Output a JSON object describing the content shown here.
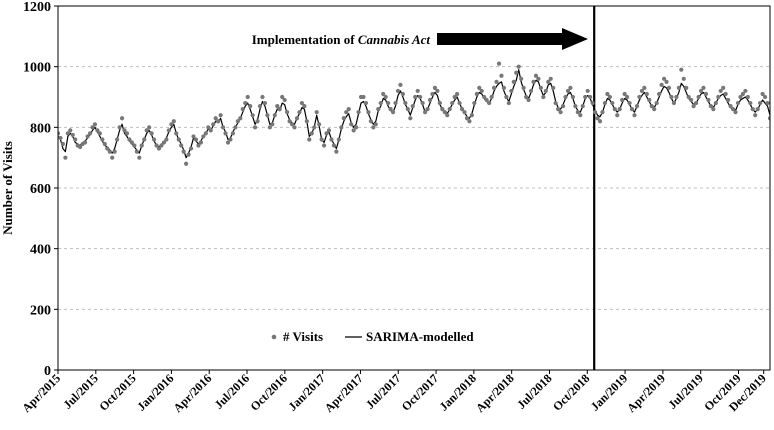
{
  "chart_data": {
    "type": "line",
    "title": "",
    "xlabel": "",
    "ylabel": "Number of Visits",
    "ylim": [
      0,
      1200
    ],
    "yticks": [
      0,
      200,
      400,
      600,
      800,
      1000,
      1200
    ],
    "grid": "horizontal-dashed",
    "x_range_months": [
      0,
      56.5
    ],
    "x_tick_labels": [
      "Apr/2015",
      "Jul/2015",
      "Oct/2015",
      "Jan/2016",
      "Apr/2016",
      "Jul/2016",
      "Oct/2016",
      "Jan/2017",
      "Apr/2017",
      "Jul/2017",
      "Oct/2017",
      "Jan/2018",
      "Apr/2018",
      "Jul/2018",
      "Oct/2018",
      "Jan/2019",
      "Apr/2019",
      "Jul/2019",
      "Oct/2019",
      "Dec/2019"
    ],
    "x_tick_positions_months": [
      0,
      3,
      6,
      9,
      12,
      15,
      18,
      21,
      24,
      27,
      30,
      33,
      36,
      39,
      42,
      45,
      48,
      51,
      54,
      56
    ],
    "intervention": {
      "label_prefix": "Implementation of ",
      "label_emph": "Cannabis Act",
      "x_month": 42.55
    },
    "legend": {
      "placement": "bottom-center",
      "visits_label": "# Visits",
      "model_label": "SARIMA-modelled"
    },
    "colors": {
      "visits": "#777777",
      "model": "#000000",
      "grid": "#bfbfbf"
    },
    "series": [
      {
        "name": "# Visits",
        "style": "points",
        "values": [
          780,
          765,
          745,
          700,
          780,
          790,
          775,
          760,
          740,
          735,
          745,
          750,
          770,
          780,
          800,
          810,
          790,
          780,
          760,
          745,
          730,
          720,
          700,
          720,
          760,
          800,
          830,
          790,
          780,
          760,
          750,
          740,
          720,
          700,
          740,
          760,
          790,
          800,
          780,
          760,
          740,
          730,
          740,
          750,
          760,
          790,
          810,
          820,
          780,
          760,
          740,
          720,
          680,
          710,
          730,
          770,
          760,
          740,
          750,
          770,
          780,
          800,
          790,
          810,
          830,
          820,
          840,
          800,
          780,
          750,
          760,
          780,
          800,
          820,
          830,
          860,
          880,
          900,
          870,
          840,
          800,
          820,
          870,
          900,
          880,
          840,
          800,
          810,
          840,
          870,
          860,
          900,
          890,
          850,
          820,
          810,
          800,
          830,
          850,
          880,
          870,
          820,
          760,
          780,
          800,
          850,
          810,
          760,
          740,
          780,
          790,
          760,
          740,
          720,
          760,
          800,
          830,
          850,
          860,
          810,
          790,
          800,
          850,
          900,
          900,
          880,
          850,
          820,
          800,
          810,
          860,
          880,
          910,
          900,
          880,
          860,
          850,
          880,
          920,
          940,
          910,
          880,
          860,
          830,
          870,
          900,
          920,
          900,
          880,
          850,
          860,
          890,
          910,
          930,
          920,
          880,
          860,
          850,
          840,
          860,
          880,
          900,
          910,
          880,
          860,
          850,
          830,
          820,
          840,
          880,
          910,
          930,
          920,
          900,
          890,
          880,
          900,
          930,
          950,
          1010,
          970,
          930,
          900,
          880,
          920,
          950,
          980,
          1000,
          960,
          930,
          900,
          890,
          920,
          950,
          970,
          960,
          930,
          900,
          920,
          950,
          960,
          930,
          880,
          860,
          850,
          870,
          900,
          920,
          930,
          900,
          870,
          850,
          840,
          870,
          900,
          920,
          900,
          880,
          850,
          830,
          820,
          850,
          880,
          910,
          900,
          880,
          860,
          840,
          860,
          890,
          910,
          900,
          880,
          860,
          840,
          870,
          900,
          920,
          930,
          910,
          890,
          870,
          860,
          880,
          910,
          940,
          960,
          950,
          930,
          900,
          880,
          900,
          930,
          990,
          960,
          930,
          900,
          890,
          870,
          880,
          900,
          920,
          930,
          910,
          890,
          870,
          860,
          880,
          900,
          920,
          930,
          910,
          890,
          870,
          860,
          850,
          880,
          900,
          910,
          920,
          900,
          880,
          860,
          840,
          860,
          880,
          910,
          900,
          880,
          830
        ]
      },
      {
        "name": "SARIMA-modelled",
        "style": "line",
        "values": [
          770,
          760,
          730,
          720,
          770,
          780,
          770,
          750,
          745,
          740,
          750,
          755,
          765,
          775,
          790,
          800,
          785,
          770,
          755,
          740,
          735,
          725,
          715,
          730,
          760,
          790,
          810,
          780,
          770,
          755,
          745,
          735,
          725,
          715,
          740,
          760,
          780,
          790,
          775,
          755,
          740,
          735,
          745,
          750,
          765,
          785,
          800,
          810,
          780,
          760,
          745,
          725,
          700,
          715,
          735,
          765,
          755,
          745,
          755,
          770,
          780,
          795,
          790,
          805,
          820,
          815,
          830,
          800,
          785,
          760,
          765,
          785,
          800,
          815,
          830,
          850,
          870,
          880,
          860,
          835,
          810,
          825,
          860,
          885,
          870,
          840,
          810,
          815,
          840,
          860,
          855,
          880,
          875,
          845,
          825,
          815,
          810,
          830,
          845,
          865,
          860,
          820,
          770,
          780,
          800,
          840,
          805,
          760,
          750,
          775,
          785,
          760,
          745,
          730,
          760,
          795,
          820,
          835,
          845,
          815,
          800,
          810,
          845,
          880,
          885,
          870,
          845,
          825,
          810,
          820,
          855,
          870,
          895,
          890,
          870,
          855,
          850,
          870,
          905,
          920,
          900,
          875,
          860,
          840,
          865,
          890,
          905,
          895,
          875,
          850,
          860,
          880,
          900,
          915,
          905,
          875,
          860,
          850,
          845,
          860,
          875,
          890,
          900,
          880,
          860,
          850,
          835,
          830,
          845,
          875,
          900,
          915,
          910,
          895,
          885,
          880,
          895,
          920,
          935,
          945,
          950,
          920,
          900,
          885,
          910,
          935,
          955,
          990,
          950,
          925,
          905,
          895,
          915,
          940,
          955,
          950,
          925,
          905,
          915,
          940,
          945,
          920,
          885,
          865,
          860,
          875,
          895,
          910,
          915,
          895,
          870,
          855,
          850,
          870,
          895,
          905,
          895,
          875,
          855,
          840,
          835,
          850,
          875,
          895,
          890,
          875,
          860,
          850,
          860,
          880,
          895,
          890,
          875,
          860,
          850,
          870,
          890,
          905,
          915,
          900,
          885,
          870,
          865,
          880,
          900,
          920,
          935,
          930,
          915,
          895,
          880,
          895,
          915,
          945,
          935,
          915,
          895,
          885,
          875,
          880,
          895,
          910,
          915,
          900,
          885,
          870,
          865,
          880,
          895,
          905,
          910,
          895,
          880,
          865,
          860,
          855,
          875,
          890,
          895,
          900,
          890,
          875,
          860,
          850,
          860,
          875,
          890,
          880,
          870,
          840
        ]
      }
    ]
  }
}
